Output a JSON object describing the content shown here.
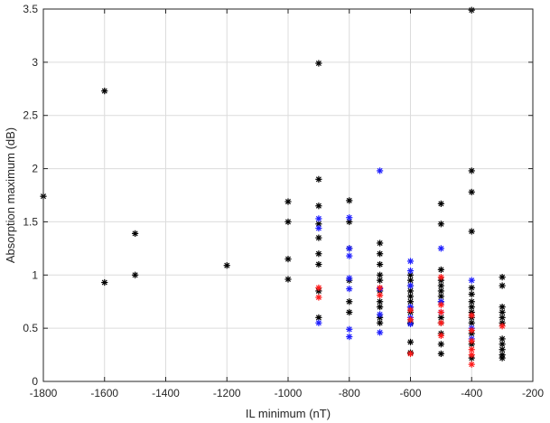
{
  "chart_data": {
    "type": "scatter",
    "title": "",
    "xlabel": "IL minimum (nT)",
    "ylabel": "Absorption maximum (dB)",
    "xlim": [
      -1800,
      -200
    ],
    "ylim": [
      0,
      3.5
    ],
    "xticks": [
      -1800,
      -1600,
      -1400,
      -1200,
      -1000,
      -800,
      -600,
      -400,
      -200
    ],
    "yticks": [
      0,
      0.5,
      1,
      1.5,
      2,
      2.5,
      3,
      3.5
    ],
    "xtick_labels": [
      "-1800",
      "-1600",
      "-1400",
      "-1200",
      "-1000",
      "-800",
      "-600",
      "-400",
      "-200"
    ],
    "ytick_labels": [
      "0",
      "0.5",
      "1",
      "1.5",
      "2",
      "2.5",
      "3",
      "3.5"
    ],
    "grid": true,
    "marker": "asterisk",
    "colors": {
      "black": "#000000",
      "blue": "#1f1fff",
      "red": "#ff1a1a"
    },
    "series": [
      {
        "color": "black",
        "x": [
          -1800,
          -1600,
          -1600,
          -1500,
          -1500,
          -1200,
          -1000,
          -1000,
          -1000,
          -1000,
          -900,
          -900,
          -900,
          -900,
          -900,
          -900,
          -900,
          -900,
          -900,
          -800,
          -800,
          -800,
          -800,
          -800,
          -800,
          -700,
          -700,
          -700,
          -700,
          -700,
          -700,
          -700,
          -700,
          -700,
          -700,
          -600,
          -600,
          -600,
          -600,
          -600,
          -600,
          -600,
          -600,
          -600,
          -600,
          -600,
          -500,
          -500,
          -500,
          -500,
          -500,
          -500,
          -500,
          -500,
          -500,
          -500,
          -500,
          -500,
          -500,
          -400,
          -400,
          -400,
          -400,
          -400,
          -400,
          -400,
          -400,
          -400,
          -400,
          -400,
          -400,
          -400,
          -400,
          -300,
          -300,
          -300,
          -300,
          -300,
          -300,
          -300,
          -300,
          -300,
          -300,
          -300
        ],
        "y": [
          1.74,
          2.73,
          0.93,
          1.39,
          1.0,
          1.09,
          1.69,
          1.5,
          1.15,
          0.96,
          2.99,
          1.9,
          1.65,
          1.48,
          1.35,
          1.2,
          1.1,
          0.85,
          0.6,
          1.7,
          1.5,
          1.25,
          0.95,
          0.75,
          0.65,
          1.3,
          1.2,
          1.1,
          1.0,
          0.95,
          0.85,
          0.75,
          0.7,
          0.6,
          0.55,
          1.0,
          0.95,
          0.9,
          0.85,
          0.8,
          0.75,
          0.7,
          0.65,
          0.55,
          0.37,
          0.27,
          1.67,
          1.48,
          1.05,
          0.95,
          0.9,
          0.85,
          0.8,
          0.75,
          0.6,
          0.55,
          0.45,
          0.35,
          0.26,
          3.49,
          1.98,
          1.78,
          1.41,
          0.88,
          0.82,
          0.75,
          0.7,
          0.65,
          0.6,
          0.55,
          0.45,
          0.35,
          0.22,
          0.98,
          0.9,
          0.7,
          0.65,
          0.6,
          0.55,
          0.4,
          0.35,
          0.3,
          0.25,
          0.22
        ]
      },
      {
        "color": "blue",
        "x": [
          -900,
          -900,
          -900,
          -800,
          -800,
          -800,
          -800,
          -800,
          -800,
          -800,
          -700,
          -700,
          -700,
          -700,
          -600,
          -600,
          -600,
          -600,
          -600,
          -600,
          -500,
          -500,
          -500,
          -400,
          -400,
          -400
        ],
        "y": [
          1.53,
          1.44,
          0.55,
          1.54,
          1.25,
          1.18,
          0.97,
          0.87,
          0.49,
          0.42,
          1.98,
          0.87,
          0.63,
          0.46,
          1.13,
          1.04,
          0.9,
          0.7,
          0.6,
          0.54,
          1.25,
          0.75,
          0.65,
          0.95,
          0.5,
          0.4
        ]
      },
      {
        "color": "red",
        "x": [
          -900,
          -900,
          -700,
          -700,
          -600,
          -600,
          -600,
          -500,
          -500,
          -500,
          -500,
          -500,
          -400,
          -400,
          -400,
          -400,
          -400,
          -400,
          -300
        ],
        "y": [
          0.88,
          0.79,
          0.88,
          0.81,
          0.67,
          0.58,
          0.26,
          0.98,
          0.72,
          0.65,
          0.55,
          0.43,
          0.62,
          0.48,
          0.38,
          0.3,
          0.25,
          0.16,
          0.52
        ]
      }
    ]
  }
}
